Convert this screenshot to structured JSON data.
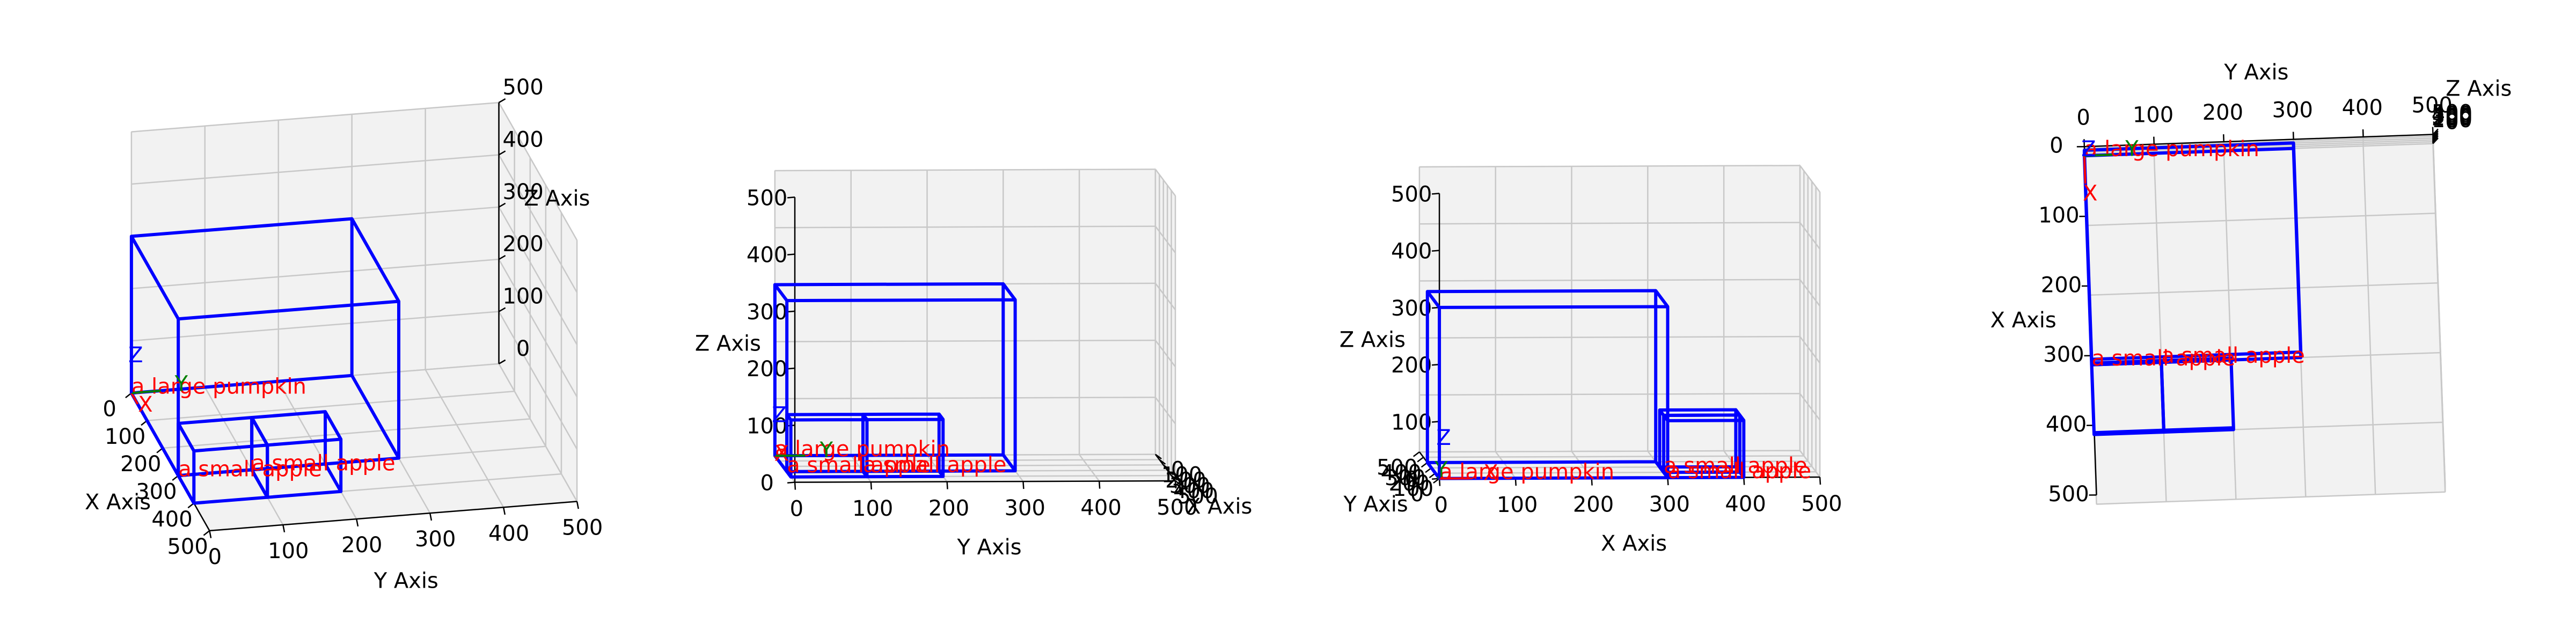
{
  "chart_data": [
    {
      "type": "box3d",
      "xlabel": "X Axis",
      "ylabel": "Y Axis",
      "zlabel": "Z Axis",
      "xlim": [
        0,
        500
      ],
      "ylim": [
        0,
        500
      ],
      "zlim": [
        0,
        500
      ],
      "xticks": [
        0,
        100,
        200,
        300,
        400,
        500
      ],
      "yticks": [
        0,
        100,
        200,
        300,
        400,
        500
      ],
      "zticks": [
        0,
        100,
        200,
        300,
        400,
        500
      ],
      "boxes": [
        {
          "label": "a large pumpkin",
          "color": "blue",
          "x": [
            0,
            300
          ],
          "y": [
            0,
            300
          ],
          "z": [
            0,
            300
          ]
        },
        {
          "label": "a small apple",
          "color": "blue",
          "x": [
            300,
            400
          ],
          "y": [
            0,
            100
          ],
          "z": [
            0,
            100
          ]
        },
        {
          "label": "a small apple",
          "color": "blue",
          "x": [
            300,
            400
          ],
          "y": [
            100,
            200
          ],
          "z": [
            0,
            100
          ]
        }
      ],
      "label_color": "red",
      "origin_axes": [
        {
          "name": "X",
          "color": "red"
        },
        {
          "name": "Y",
          "color": "green"
        },
        {
          "name": "Z",
          "color": "blue"
        }
      ]
    },
    {
      "type": "box3d",
      "xlabel": "X Axis",
      "ylabel": "Y Axis",
      "zlabel": "Z Axis",
      "xlim": [
        0,
        500
      ],
      "ylim": [
        0,
        500
      ],
      "zlim": [
        0,
        500
      ],
      "xticks": [
        0,
        100,
        200,
        300,
        400,
        500
      ],
      "yticks": [
        0,
        100,
        200,
        300,
        400,
        500
      ],
      "zticks": [
        0,
        100,
        200,
        300,
        400,
        500
      ],
      "boxes": [
        {
          "label": "a large pumpkin",
          "color": "blue",
          "x": [
            0,
            300
          ],
          "y": [
            0,
            300
          ],
          "z": [
            0,
            300
          ]
        },
        {
          "label": "a small apple",
          "color": "blue",
          "x": [
            300,
            400
          ],
          "y": [
            0,
            100
          ],
          "z": [
            0,
            100
          ]
        },
        {
          "label": "a small apple",
          "color": "blue",
          "x": [
            300,
            400
          ],
          "y": [
            100,
            200
          ],
          "z": [
            0,
            100
          ]
        }
      ],
      "label_color": "red",
      "origin_axes": [
        {
          "name": "X",
          "color": "red"
        },
        {
          "name": "Y",
          "color": "green"
        },
        {
          "name": "Z",
          "color": "blue"
        }
      ]
    },
    {
      "type": "box3d",
      "xlabel": "X Axis",
      "ylabel": "Y Axis",
      "zlabel": "Z Axis",
      "xlim": [
        0,
        500
      ],
      "ylim": [
        0,
        500
      ],
      "zlim": [
        0,
        500
      ],
      "xticks": [
        0,
        100,
        200,
        300,
        400,
        500
      ],
      "yticks": [
        0,
        100,
        200,
        300,
        400,
        500
      ],
      "zticks": [
        0,
        100,
        200,
        300,
        400,
        500
      ],
      "boxes": [
        {
          "label": "a large pumpkin",
          "color": "blue",
          "x": [
            0,
            300
          ],
          "y": [
            0,
            300
          ],
          "z": [
            0,
            300
          ]
        },
        {
          "label": "a small apple",
          "color": "blue",
          "x": [
            300,
            400
          ],
          "y": [
            0,
            100
          ],
          "z": [
            0,
            100
          ]
        },
        {
          "label": "a small apple",
          "color": "blue",
          "x": [
            300,
            400
          ],
          "y": [
            100,
            200
          ],
          "z": [
            0,
            100
          ]
        }
      ],
      "label_color": "red",
      "origin_axes": [
        {
          "name": "X",
          "color": "red"
        },
        {
          "name": "Y",
          "color": "green"
        },
        {
          "name": "Z",
          "color": "blue"
        }
      ]
    },
    {
      "type": "box3d",
      "xlabel": "X Axis",
      "ylabel": "Y Axis",
      "zlabel": "Z Axis",
      "xlim": [
        0,
        500
      ],
      "ylim": [
        0,
        500
      ],
      "zlim": [
        0,
        500
      ],
      "xticks": [
        0,
        100,
        200,
        300,
        400,
        500
      ],
      "yticks": [
        0,
        100,
        200,
        300,
        400,
        500
      ],
      "zticks": [
        0,
        100,
        200,
        300,
        400,
        500
      ],
      "boxes": [
        {
          "label": "a large pumpkin",
          "color": "blue",
          "x": [
            0,
            300
          ],
          "y": [
            0,
            300
          ],
          "z": [
            0,
            300
          ]
        },
        {
          "label": "a small apple",
          "color": "blue",
          "x": [
            300,
            400
          ],
          "y": [
            0,
            100
          ],
          "z": [
            0,
            100
          ]
        },
        {
          "label": "a small apple",
          "color": "blue",
          "x": [
            300,
            400
          ],
          "y": [
            100,
            200
          ],
          "z": [
            0,
            100
          ]
        }
      ],
      "label_color": "red",
      "origin_axes": [
        {
          "name": "X",
          "color": "red"
        },
        {
          "name": "Y",
          "color": "green"
        },
        {
          "name": "Z",
          "color": "blue"
        }
      ]
    }
  ]
}
